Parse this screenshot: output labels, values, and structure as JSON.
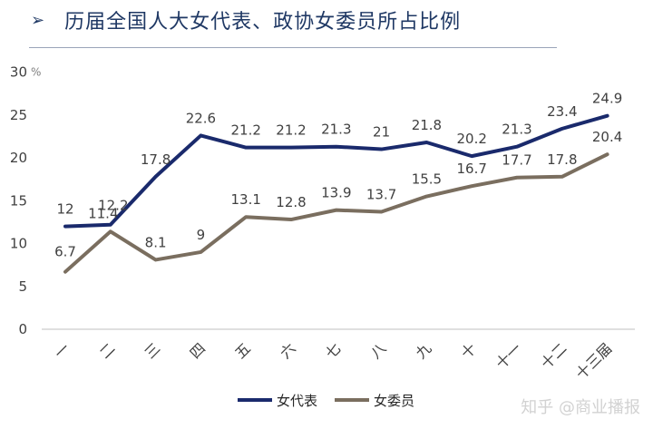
{
  "header": {
    "arrow": "➢",
    "title": "历届全国人大女代表、政协女委员所占比例"
  },
  "watermark": "知乎 @商业播报",
  "colors": {
    "series0": "#1a2a6c",
    "series1": "#7a6e5f",
    "axis": "#bfbfbf",
    "text": "#404040"
  },
  "chart_data": {
    "type": "line",
    "title": "",
    "xlabel": "",
    "ylabel": "",
    "y_unit": "%",
    "ylim": [
      0,
      30
    ],
    "yticks": [
      0,
      5,
      10,
      15,
      20,
      25,
      30
    ],
    "grid": false,
    "legend_position": "bottom",
    "categories": [
      "一",
      "二",
      "三",
      "四",
      "五",
      "六",
      "七",
      "八",
      "九",
      "十",
      "十一",
      "十二",
      "十三届"
    ],
    "series": [
      {
        "name": "女代表",
        "values": [
          12,
          12.2,
          17.8,
          22.6,
          21.2,
          21.2,
          21.3,
          21,
          21.8,
          20.2,
          21.3,
          23.4,
          24.9
        ]
      },
      {
        "name": "女委员",
        "values": [
          6.7,
          11.4,
          8.1,
          9,
          13.1,
          12.8,
          13.9,
          13.7,
          15.5,
          16.7,
          17.7,
          17.8,
          20.4
        ]
      }
    ]
  }
}
